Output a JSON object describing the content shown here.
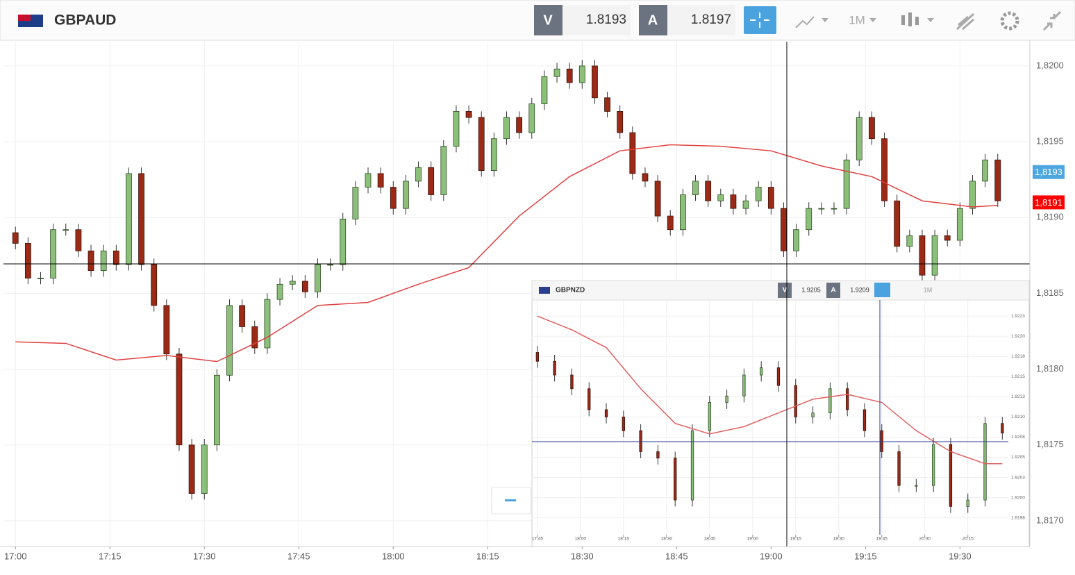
{
  "header": {
    "symbol": "GBPAUD",
    "bid_label": "V",
    "bid": "1.8193",
    "ask_label": "A",
    "ask": "1.8197",
    "timeframe": "1M"
  },
  "inset_header": {
    "symbol": "GBPNZD",
    "bid_label": "V",
    "bid": "1.9205",
    "ask_label": "A",
    "ask": "1.9209",
    "timeframe": "1M"
  },
  "chart_data": [
    {
      "type": "candlestick",
      "up_color": "#8cbf7a",
      "down_color": "#9b2a17",
      "grid": true,
      "x": [
        0,
        2,
        4,
        6,
        8,
        10,
        12,
        14,
        16,
        18,
        20,
        22,
        24,
        26,
        28,
        30,
        32,
        34,
        36,
        38,
        40,
        42,
        44,
        46,
        48,
        50,
        52,
        54,
        56,
        58,
        60,
        62,
        64,
        66,
        68,
        70,
        72,
        74,
        76,
        78,
        80,
        82,
        84,
        86,
        88,
        90,
        92,
        94,
        96,
        98,
        100,
        102,
        104,
        106,
        108,
        110,
        112,
        114,
        116,
        118,
        120,
        122,
        124,
        126,
        128,
        130,
        132,
        134,
        136,
        138,
        140,
        142,
        144,
        146,
        148,
        150,
        152,
        154,
        156
      ],
      "open": [
        1.8189,
        1.81883,
        1.8186,
        1.8186,
        1.81892,
        1.81892,
        1.81878,
        1.81865,
        1.81878,
        1.81869,
        1.81929,
        1.81869,
        1.81842,
        1.8181,
        1.8175,
        1.81718,
        1.8175,
        1.81796,
        1.81842,
        1.81828,
        1.81814,
        1.81846,
        1.81856,
        1.81858,
        1.81851,
        1.81869,
        1.81869,
        1.81899,
        1.8192,
        1.81929,
        1.8192,
        1.81906,
        1.81924,
        1.81933,
        1.81915,
        1.81947,
        1.8197,
        1.81966,
        1.81931,
        1.81952,
        1.81966,
        1.81956,
        1.81975,
        1.81993,
        1.81998,
        1.81989,
        1.82,
        1.81979,
        1.8197,
        1.81956,
        1.81929,
        1.81924,
        1.81901,
        1.81892,
        1.81915,
        1.81924,
        1.81911,
        1.81915,
        1.81906,
        1.81911,
        1.8192,
        1.81906,
        1.81878,
        1.81892,
        1.81906,
        1.81906,
        1.81906,
        1.81938,
        1.81966,
        1.81952,
        1.81911,
        1.81881,
        1.81888,
        1.81862,
        1.81888,
        1.81885,
        1.81906,
        1.81924,
        1.81938
      ],
      "high": [
        1.81894,
        1.81887,
        1.81864,
        1.81896,
        1.81896,
        1.81896,
        1.81882,
        1.81882,
        1.81882,
        1.81933,
        1.81933,
        1.81873,
        1.81846,
        1.81814,
        1.81754,
        1.81754,
        1.818,
        1.81846,
        1.81846,
        1.81832,
        1.8185,
        1.8186,
        1.81862,
        1.81862,
        1.81873,
        1.81873,
        1.81903,
        1.81924,
        1.81933,
        1.81933,
        1.81924,
        1.81928,
        1.81937,
        1.81937,
        1.81951,
        1.81974,
        1.81974,
        1.8197,
        1.81956,
        1.8197,
        1.8197,
        1.81979,
        1.81997,
        1.82002,
        1.82002,
        1.82004,
        1.82004,
        1.81983,
        1.81974,
        1.8196,
        1.81933,
        1.81928,
        1.81905,
        1.81919,
        1.81928,
        1.81928,
        1.81919,
        1.81919,
        1.81915,
        1.81924,
        1.81924,
        1.8191,
        1.81896,
        1.8191,
        1.8191,
        1.8191,
        1.81942,
        1.8197,
        1.8197,
        1.81956,
        1.81915,
        1.81892,
        1.81892,
        1.81892,
        1.81892,
        1.8191,
        1.81928,
        1.81942,
        1.81942
      ],
      "low": [
        1.81879,
        1.81856,
        1.81856,
        1.81856,
        1.81888,
        1.81874,
        1.81861,
        1.81861,
        1.81865,
        1.81865,
        1.81865,
        1.81838,
        1.81806,
        1.81746,
        1.81714,
        1.81714,
        1.81746,
        1.81792,
        1.81824,
        1.8181,
        1.8181,
        1.81842,
        1.81852,
        1.81847,
        1.81847,
        1.81865,
        1.81865,
        1.81895,
        1.81916,
        1.81916,
        1.81902,
        1.81902,
        1.8192,
        1.81911,
        1.81911,
        1.81943,
        1.81962,
        1.81927,
        1.81927,
        1.81948,
        1.81952,
        1.81952,
        1.81971,
        1.81989,
        1.81985,
        1.81985,
        1.81975,
        1.81966,
        1.81952,
        1.81925,
        1.8192,
        1.81897,
        1.81888,
        1.81888,
        1.81911,
        1.81907,
        1.81907,
        1.81902,
        1.81902,
        1.81907,
        1.81902,
        1.81874,
        1.81874,
        1.81888,
        1.81902,
        1.81902,
        1.81902,
        1.81934,
        1.81948,
        1.81907,
        1.81877,
        1.81877,
        1.81858,
        1.81858,
        1.81881,
        1.81881,
        1.81902,
        1.8192,
        1.81907
      ],
      "close": [
        1.81883,
        1.8186,
        1.8186,
        1.81892,
        1.81892,
        1.81878,
        1.81865,
        1.81878,
        1.81869,
        1.81929,
        1.81869,
        1.81842,
        1.8181,
        1.8175,
        1.81718,
        1.8175,
        1.81796,
        1.81842,
        1.81828,
        1.81814,
        1.81846,
        1.81856,
        1.81858,
        1.81851,
        1.81869,
        1.81869,
        1.81899,
        1.8192,
        1.81929,
        1.8192,
        1.81906,
        1.81924,
        1.81933,
        1.81915,
        1.81947,
        1.8197,
        1.81966,
        1.81931,
        1.81952,
        1.81966,
        1.81956,
        1.81975,
        1.81993,
        1.81998,
        1.81989,
        1.82,
        1.81979,
        1.8197,
        1.81956,
        1.81929,
        1.81924,
        1.81901,
        1.81892,
        1.81915,
        1.81924,
        1.81911,
        1.81915,
        1.81906,
        1.81911,
        1.8192,
        1.81906,
        1.81878,
        1.81892,
        1.81906,
        1.81906,
        1.81906,
        1.81938,
        1.81966,
        1.81952,
        1.81911,
        1.81881,
        1.81888,
        1.81862,
        1.81888,
        1.81885,
        1.81906,
        1.81924,
        1.81938,
        1.81911
      ],
      "line": {
        "color": "#e04040",
        "x": [
          0,
          8,
          16,
          24,
          32,
          40,
          48,
          56,
          64,
          72,
          80,
          88,
          96,
          104,
          112,
          120,
          128,
          136,
          144,
          152,
          156
        ],
        "values": [
          1.81818,
          1.81817,
          1.81806,
          1.81809,
          1.81805,
          1.81821,
          1.81842,
          1.81844,
          1.81856,
          1.81867,
          1.81901,
          1.81927,
          1.81944,
          1.81948,
          1.81947,
          1.81944,
          1.81934,
          1.81927,
          1.81911,
          1.81907,
          1.81908
        ]
      },
      "price_tags": [
        {
          "value": 1.8193,
          "label": "1,8193",
          "color": "#4da6e0"
        },
        {
          "value": 1.8191,
          "label": "1,8191",
          "color": "#ff0000"
        }
      ],
      "xlim": [
        -1.9,
        161.1
      ],
      "ylim": [
        1.81683,
        1.82016
      ],
      "xticks": [
        {
          "value": 0,
          "label": "17:00"
        },
        {
          "value": 15,
          "label": "17:15"
        },
        {
          "value": 30,
          "label": "17:30"
        },
        {
          "value": 45,
          "label": "17:45"
        },
        {
          "value": 60,
          "label": "18:00"
        },
        {
          "value": 75,
          "label": "18:15"
        },
        {
          "value": 90,
          "label": "18:30"
        },
        {
          "value": 105,
          "label": "18:45"
        },
        {
          "value": 120,
          "label": "19:00"
        },
        {
          "value": 135,
          "label": "19:15"
        },
        {
          "value": 150,
          "label": "19:30"
        }
      ],
      "yticks": [
        {
          "value": 1.817,
          "label": "1,8170"
        },
        {
          "value": 1.8175,
          "label": "1,8175"
        },
        {
          "value": 1.818,
          "label": "1,8180"
        },
        {
          "value": 1.8185,
          "label": "1,8185"
        },
        {
          "value": 1.819,
          "label": "1,8190"
        },
        {
          "value": 1.8195,
          "label": "1,8195"
        },
        {
          "value": 1.82,
          "label": "1,8200"
        }
      ]
    },
    {
      "type": "candlestick",
      "up_color": "#8cbf7a",
      "down_color": "#9b2a17",
      "grid": true,
      "x": [
        0,
        6,
        12,
        18,
        24,
        30,
        36,
        42,
        48,
        54,
        60,
        66,
        72,
        78,
        84,
        90,
        96,
        102,
        108,
        114,
        120,
        126,
        132,
        138,
        144,
        150,
        156,
        162
      ],
      "open": [
        1.9218,
        1.92169,
        1.92152,
        1.92135,
        1.92109,
        1.921,
        1.92083,
        1.92057,
        1.92049,
        1.91997,
        1.92083,
        1.92118,
        1.92126,
        1.92152,
        1.92161,
        1.92139,
        1.921,
        1.92105,
        1.92135,
        1.92109,
        1.92083,
        1.92057,
        1.92015,
        1.92015,
        1.92066,
        1.91989,
        1.91997,
        1.92092
      ],
      "high": [
        1.92188,
        1.92177,
        1.9216,
        1.92143,
        1.92117,
        1.92108,
        1.92091,
        1.92065,
        1.92057,
        1.92091,
        1.92126,
        1.92134,
        1.9216,
        1.92169,
        1.92169,
        1.92147,
        1.92113,
        1.92143,
        1.92143,
        1.92117,
        1.92091,
        1.92065,
        1.92023,
        1.92074,
        1.92074,
        1.92005,
        1.921,
        1.921
      ],
      "low": [
        1.92161,
        1.92144,
        1.92127,
        1.92101,
        1.92092,
        1.92075,
        1.92049,
        1.92041,
        1.91989,
        1.91989,
        1.92075,
        1.9211,
        1.92118,
        1.92144,
        1.92131,
        1.92092,
        1.92092,
        1.92097,
        1.92101,
        1.92075,
        1.92049,
        1.92007,
        1.92007,
        1.92007,
        1.91981,
        1.91981,
        1.91989,
        1.92072
      ],
      "close": [
        1.92169,
        1.92152,
        1.92135,
        1.92109,
        1.921,
        1.92083,
        1.92057,
        1.92049,
        1.91997,
        1.92083,
        1.92118,
        1.92126,
        1.92152,
        1.92161,
        1.92139,
        1.921,
        1.92105,
        1.92135,
        1.92109,
        1.92083,
        1.92057,
        1.92015,
        1.92015,
        1.92066,
        1.91989,
        1.91997,
        1.92092,
        1.9208
      ],
      "line": {
        "color": "#e06060",
        "x": [
          0,
          12,
          24,
          36,
          48,
          60,
          72,
          84,
          96,
          108,
          120,
          132,
          144,
          156,
          162
        ],
        "values": [
          1.92225,
          1.92208,
          1.92186,
          1.92135,
          1.92092,
          1.92079,
          1.92088,
          1.92105,
          1.92122,
          1.92128,
          1.92118,
          1.92083,
          1.92057,
          1.92042,
          1.92042
        ]
      },
      "xlim": [
        -1.9,
        164.1
      ],
      "ylim": [
        1.91954,
        1.92245
      ],
      "xticks": [
        {
          "value": 0,
          "label": "17:45"
        },
        {
          "value": 15,
          "label": "18:00"
        },
        {
          "value": 30,
          "label": "18:15"
        },
        {
          "value": 45,
          "label": "18:30"
        },
        {
          "value": 60,
          "label": "18:45"
        },
        {
          "value": 75,
          "label": "19:00"
        },
        {
          "value": 90,
          "label": "19:15"
        },
        {
          "value": 105,
          "label": "19:30"
        },
        {
          "value": 120,
          "label": "19:45"
        },
        {
          "value": 135,
          "label": "20:00"
        },
        {
          "value": 150,
          "label": "20:15"
        }
      ],
      "yticks": [
        {
          "value": 1.91975,
          "label": "1.9198"
        },
        {
          "value": 1.92,
          "label": "1.9200"
        },
        {
          "value": 1.92025,
          "label": "1.9203"
        },
        {
          "value": 1.9205,
          "label": "1.9205"
        },
        {
          "value": 1.92075,
          "label": "1.9208"
        },
        {
          "value": 1.921,
          "label": "1.9210"
        },
        {
          "value": 1.92125,
          "label": "1.9213"
        },
        {
          "value": 1.9215,
          "label": "1.9215"
        },
        {
          "value": 1.92175,
          "label": "1.9218"
        },
        {
          "value": 1.922,
          "label": "1.9220"
        },
        {
          "value": 1.92225,
          "label": "1.9223"
        }
      ]
    }
  ]
}
